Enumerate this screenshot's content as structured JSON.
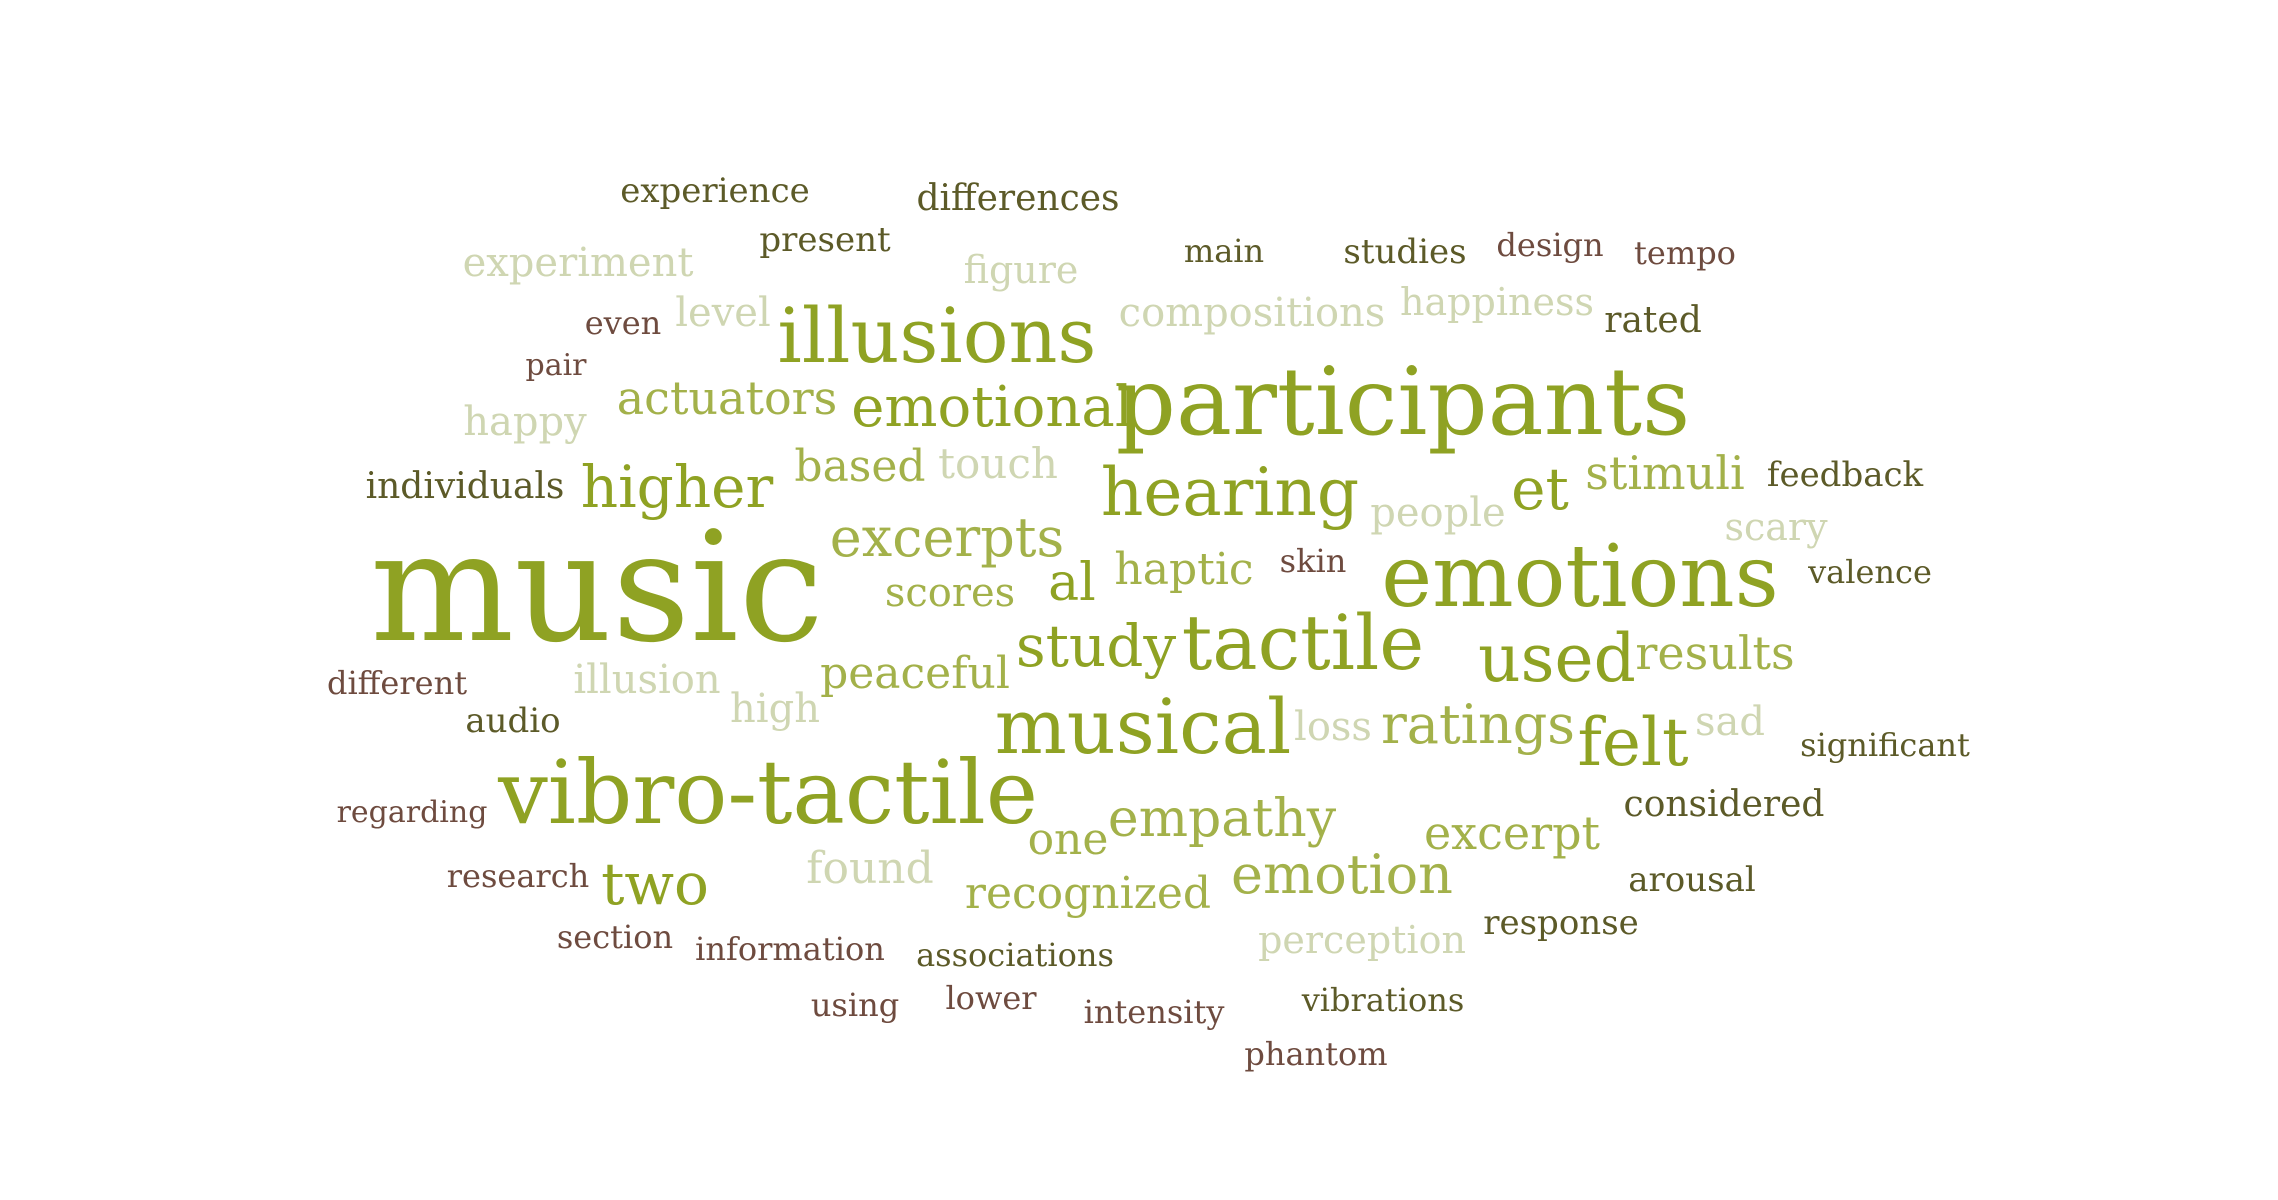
{
  "colors": {
    "olive": "#8fa223",
    "olive_mid": "#a3b14a",
    "sage": "#cfd6b2",
    "dark_olive": "#5c5a28",
    "brown": "#6e4b3f"
  },
  "words": [
    {
      "text": "music",
      "tone": "olive"
    },
    {
      "text": "participants",
      "tone": "olive"
    },
    {
      "text": "vibro-tactile",
      "tone": "olive"
    },
    {
      "text": "emotions",
      "tone": "olive"
    },
    {
      "text": "musical",
      "tone": "olive"
    },
    {
      "text": "illusions",
      "tone": "olive"
    },
    {
      "text": "tactile",
      "tone": "olive"
    },
    {
      "text": "hearing",
      "tone": "olive"
    },
    {
      "text": "emotional",
      "tone": "olive"
    },
    {
      "text": "higher",
      "tone": "olive"
    },
    {
      "text": "used",
      "tone": "olive"
    },
    {
      "text": "felt",
      "tone": "olive"
    },
    {
      "text": "study",
      "tone": "olive"
    },
    {
      "text": "et",
      "tone": "olive"
    },
    {
      "text": "al",
      "tone": "olive"
    },
    {
      "text": "two",
      "tone": "olive"
    },
    {
      "text": "emotion",
      "tone": "olive_mid"
    },
    {
      "text": "excerpts",
      "tone": "olive_mid"
    },
    {
      "text": "ratings",
      "tone": "olive_mid"
    },
    {
      "text": "empathy",
      "tone": "olive_mid"
    },
    {
      "text": "excerpt",
      "tone": "olive_mid"
    },
    {
      "text": "recognized",
      "tone": "olive_mid"
    },
    {
      "text": "actuators",
      "tone": "olive_mid"
    },
    {
      "text": "stimuli",
      "tone": "olive_mid"
    },
    {
      "text": "results",
      "tone": "olive_mid"
    },
    {
      "text": "based",
      "tone": "olive_mid"
    },
    {
      "text": "peaceful",
      "tone": "olive_mid"
    },
    {
      "text": "haptic",
      "tone": "olive_mid"
    },
    {
      "text": "one",
      "tone": "olive_mid"
    },
    {
      "text": "scores",
      "tone": "olive_mid"
    },
    {
      "text": "compositions",
      "tone": "sage"
    },
    {
      "text": "experiment",
      "tone": "sage"
    },
    {
      "text": "happiness",
      "tone": "sage"
    },
    {
      "text": "figure",
      "tone": "sage"
    },
    {
      "text": "level",
      "tone": "sage"
    },
    {
      "text": "happy",
      "tone": "sage"
    },
    {
      "text": "touch",
      "tone": "sage"
    },
    {
      "text": "people",
      "tone": "sage"
    },
    {
      "text": "scary",
      "tone": "sage"
    },
    {
      "text": "illusion",
      "tone": "sage"
    },
    {
      "text": "high",
      "tone": "sage"
    },
    {
      "text": "loss",
      "tone": "sage"
    },
    {
      "text": "sad",
      "tone": "sage"
    },
    {
      "text": "found",
      "tone": "sage"
    },
    {
      "text": "perception",
      "tone": "sage"
    },
    {
      "text": "experience",
      "tone": "dark_olive"
    },
    {
      "text": "differences",
      "tone": "dark_olive"
    },
    {
      "text": "present",
      "tone": "dark_olive"
    },
    {
      "text": "main",
      "tone": "dark_olive"
    },
    {
      "text": "studies",
      "tone": "dark_olive"
    },
    {
      "text": "rated",
      "tone": "dark_olive"
    },
    {
      "text": "individuals",
      "tone": "dark_olive"
    },
    {
      "text": "feedback",
      "tone": "dark_olive"
    },
    {
      "text": "valence",
      "tone": "dark_olive"
    },
    {
      "text": "audio",
      "tone": "dark_olive"
    },
    {
      "text": "significant",
      "tone": "dark_olive"
    },
    {
      "text": "considered",
      "tone": "dark_olive"
    },
    {
      "text": "arousal",
      "tone": "dark_olive"
    },
    {
      "text": "response",
      "tone": "dark_olive"
    },
    {
      "text": "associations",
      "tone": "dark_olive"
    },
    {
      "text": "vibrations",
      "tone": "dark_olive"
    },
    {
      "text": "design",
      "tone": "brown"
    },
    {
      "text": "tempo",
      "tone": "brown"
    },
    {
      "text": "even",
      "tone": "brown"
    },
    {
      "text": "pair",
      "tone": "brown"
    },
    {
      "text": "skin",
      "tone": "brown"
    },
    {
      "text": "different",
      "tone": "brown"
    },
    {
      "text": "regarding",
      "tone": "brown"
    },
    {
      "text": "research",
      "tone": "brown"
    },
    {
      "text": "section",
      "tone": "brown"
    },
    {
      "text": "information",
      "tone": "brown"
    },
    {
      "text": "using",
      "tone": "brown"
    },
    {
      "text": "lower",
      "tone": "brown"
    },
    {
      "text": "intensity",
      "tone": "brown"
    },
    {
      "text": "phantom",
      "tone": "brown"
    }
  ]
}
